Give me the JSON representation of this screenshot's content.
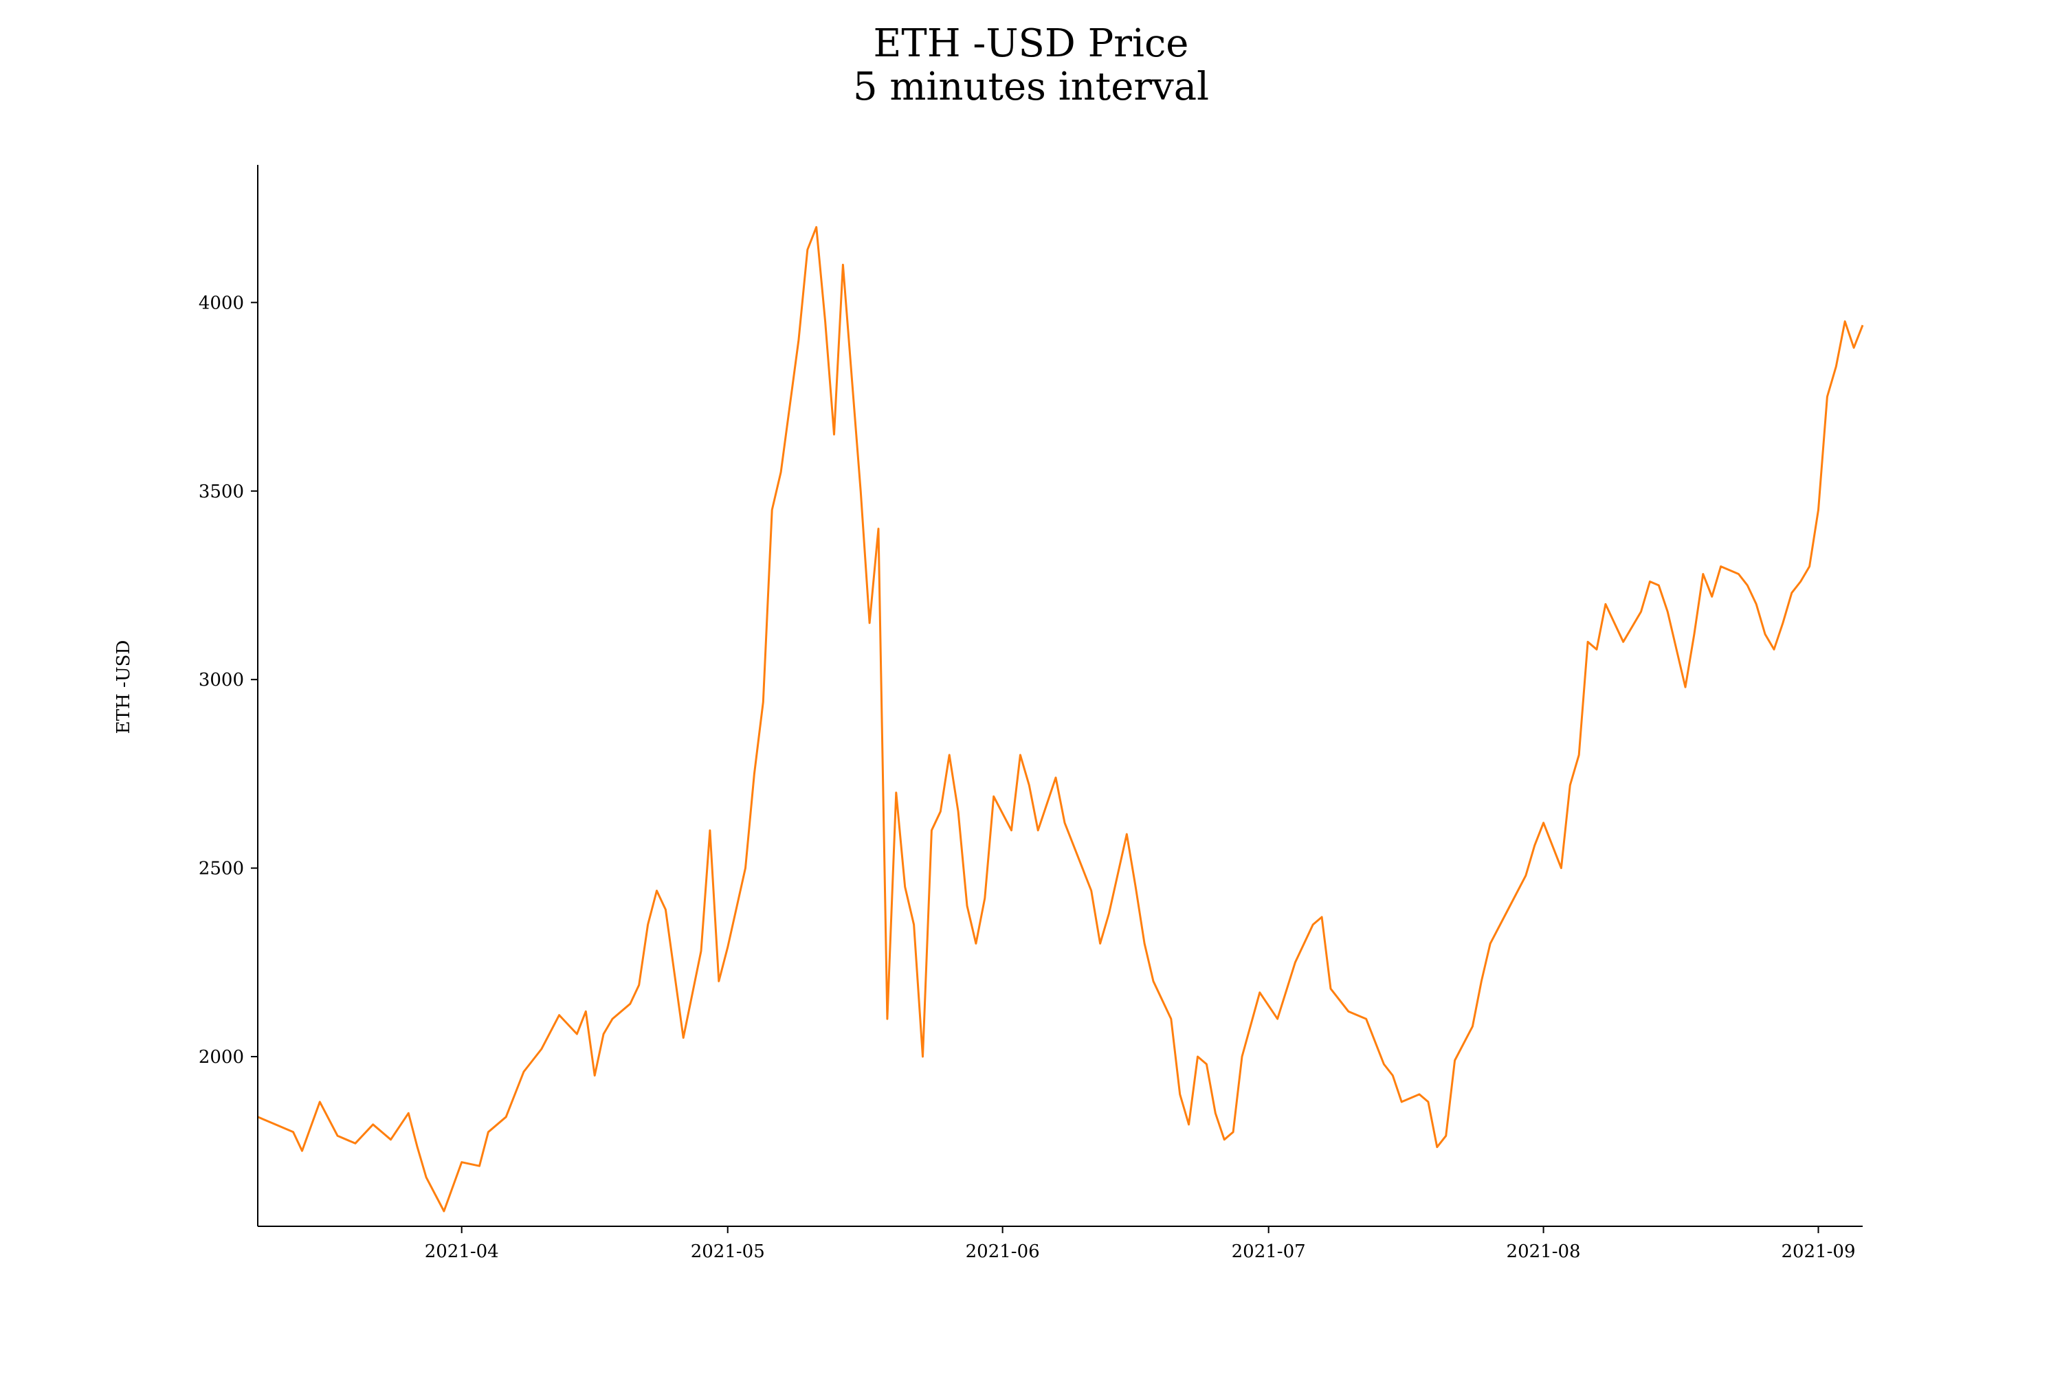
{
  "chart_data": {
    "type": "line",
    "title": "ETH -USD Price",
    "subtitle": "5 minutes interval",
    "xlabel": "",
    "ylabel": "ETH -USD",
    "x_ticks": [
      "2021-04",
      "2021-05",
      "2021-06",
      "2021-07",
      "2021-08",
      "2021-09"
    ],
    "y_ticks": [
      "2000",
      "2500",
      "3000",
      "3500",
      "4000"
    ],
    "xlim": [
      "2021-03-09",
      "2021-09-06"
    ],
    "ylim": [
      1550,
      4365
    ],
    "grid": false,
    "series": [
      {
        "color": "#ff7f0e",
        "x": [
          "2021-03-09",
          "2021-03-11",
          "2021-03-13",
          "2021-03-14",
          "2021-03-16",
          "2021-03-18",
          "2021-03-20",
          "2021-03-22",
          "2021-03-24",
          "2021-03-26",
          "2021-03-27",
          "2021-03-28",
          "2021-03-30",
          "2021-04-01",
          "2021-04-03",
          "2021-04-04",
          "2021-04-06",
          "2021-04-08",
          "2021-04-10",
          "2021-04-12",
          "2021-04-14",
          "2021-04-15",
          "2021-04-16",
          "2021-04-17",
          "2021-04-18",
          "2021-04-20",
          "2021-04-21",
          "2021-04-22",
          "2021-04-23",
          "2021-04-24",
          "2021-04-25",
          "2021-04-26",
          "2021-04-28",
          "2021-04-29",
          "2021-04-30",
          "2021-05-01",
          "2021-05-03",
          "2021-05-04",
          "2021-05-05",
          "2021-05-06",
          "2021-05-07",
          "2021-05-09",
          "2021-05-10",
          "2021-05-11",
          "2021-05-12",
          "2021-05-13",
          "2021-05-14",
          "2021-05-15",
          "2021-05-16",
          "2021-05-17",
          "2021-05-18",
          "2021-05-19",
          "2021-05-20",
          "2021-05-21",
          "2021-05-22",
          "2021-05-23",
          "2021-05-24",
          "2021-05-25",
          "2021-05-26",
          "2021-05-27",
          "2021-05-28",
          "2021-05-29",
          "2021-05-30",
          "2021-05-31",
          "2021-06-02",
          "2021-06-03",
          "2021-06-04",
          "2021-06-05",
          "2021-06-07",
          "2021-06-08",
          "2021-06-10",
          "2021-06-11",
          "2021-06-12",
          "2021-06-13",
          "2021-06-15",
          "2021-06-16",
          "2021-06-17",
          "2021-06-18",
          "2021-06-20",
          "2021-06-21",
          "2021-06-22",
          "2021-06-23",
          "2021-06-24",
          "2021-06-25",
          "2021-06-26",
          "2021-06-27",
          "2021-06-28",
          "2021-06-30",
          "2021-07-02",
          "2021-07-04",
          "2021-07-05",
          "2021-07-06",
          "2021-07-07",
          "2021-07-08",
          "2021-07-10",
          "2021-07-12",
          "2021-07-14",
          "2021-07-15",
          "2021-07-16",
          "2021-07-18",
          "2021-07-19",
          "2021-07-20",
          "2021-07-21",
          "2021-07-22",
          "2021-07-24",
          "2021-07-25",
          "2021-07-26",
          "2021-07-28",
          "2021-07-30",
          "2021-07-31",
          "2021-08-01",
          "2021-08-03",
          "2021-08-04",
          "2021-08-05",
          "2021-08-06",
          "2021-08-07",
          "2021-08-08",
          "2021-08-10",
          "2021-08-12",
          "2021-08-13",
          "2021-08-14",
          "2021-08-15",
          "2021-08-16",
          "2021-08-17",
          "2021-08-18",
          "2021-08-19",
          "2021-08-20",
          "2021-08-21",
          "2021-08-23",
          "2021-08-24",
          "2021-08-25",
          "2021-08-26",
          "2021-08-27",
          "2021-08-28",
          "2021-08-29",
          "2021-08-30",
          "2021-08-31",
          "2021-09-01",
          "2021-09-02",
          "2021-09-03",
          "2021-09-04",
          "2021-09-05",
          "2021-09-06"
        ],
        "y": [
          1840,
          1820,
          1800,
          1750,
          1880,
          1790,
          1770,
          1820,
          1780,
          1850,
          1760,
          1680,
          1590,
          1720,
          1710,
          1800,
          1840,
          1960,
          2020,
          2110,
          2060,
          2120,
          1950,
          2060,
          2100,
          2140,
          2190,
          2350,
          2440,
          2390,
          2220,
          2050,
          2280,
          2600,
          2200,
          2290,
          2500,
          2750,
          2940,
          3450,
          3550,
          3900,
          4140,
          4200,
          3950,
          3650,
          4100,
          3800,
          3500,
          3150,
          3400,
          2100,
          2700,
          2450,
          2350,
          2000,
          2600,
          2650,
          2800,
          2650,
          2400,
          2300,
          2420,
          2690,
          2600,
          2800,
          2720,
          2600,
          2740,
          2620,
          2500,
          2440,
          2300,
          2380,
          2590,
          2450,
          2300,
          2200,
          2100,
          1900,
          1820,
          2000,
          1980,
          1850,
          1780,
          1800,
          2000,
          2170,
          2100,
          2250,
          2300,
          2350,
          2370,
          2180,
          2120,
          2100,
          1980,
          1950,
          1880,
          1900,
          1880,
          1760,
          1790,
          1990,
          2080,
          2200,
          2300,
          2390,
          2480,
          2560,
          2620,
          2500,
          2720,
          2800,
          3100,
          3080,
          3200,
          3100,
          3180,
          3260,
          3250,
          3180,
          3080,
          2980,
          3120,
          3280,
          3220,
          3300,
          3280,
          3250,
          3200,
          3120,
          3080,
          3150,
          3230,
          3260,
          3300,
          3450,
          3750,
          3830,
          3950,
          3880,
          3940
        ]
      }
    ]
  }
}
